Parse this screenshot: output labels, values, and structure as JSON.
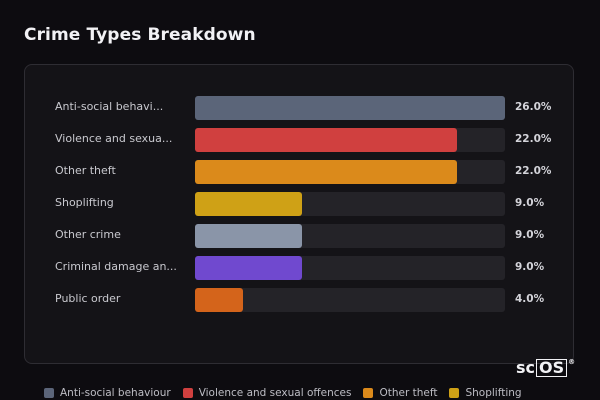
{
  "header": {
    "title": "Crime Types Breakdown"
  },
  "chart_data": {
    "type": "bar",
    "orientation": "horizontal",
    "title": "Crime Types Breakdown",
    "value_unit": "%",
    "xlim": [
      0,
      26
    ],
    "bars": [
      {
        "label": "Anti-social behavi...",
        "value": 26.0,
        "value_label": "26.0%",
        "color": "#5b6579"
      },
      {
        "label": "Violence and sexua...",
        "value": 22.0,
        "value_label": "22.0%",
        "color": "#d0403f"
      },
      {
        "label": "Other theft",
        "value": 22.0,
        "value_label": "22.0%",
        "color": "#db8a1b"
      },
      {
        "label": "Shoplifting",
        "value": 9.0,
        "value_label": "9.0%",
        "color": "#cfa116"
      },
      {
        "label": "Other crime",
        "value": 9.0,
        "value_label": "9.0%",
        "color": "#8a95a8"
      },
      {
        "label": "Criminal damage an...",
        "value": 9.0,
        "value_label": "9.0%",
        "color": "#7049cf"
      },
      {
        "label": "Public order",
        "value": 4.0,
        "value_label": "4.0%",
        "color": "#d4641b"
      }
    ],
    "legend": {
      "placement": "bottom",
      "entries": [
        {
          "name": "Anti-social behaviour",
          "color": "#5b6579"
        },
        {
          "name": "Violence and sexual offences",
          "color": "#d0403f"
        },
        {
          "name": "Other theft",
          "color": "#db8a1b"
        },
        {
          "name": "Shoplifting",
          "color": "#cfa116"
        }
      ]
    },
    "grid": false
  },
  "logo": {
    "text_plain": "sc",
    "text_boxed": "OS",
    "mark": "®"
  }
}
